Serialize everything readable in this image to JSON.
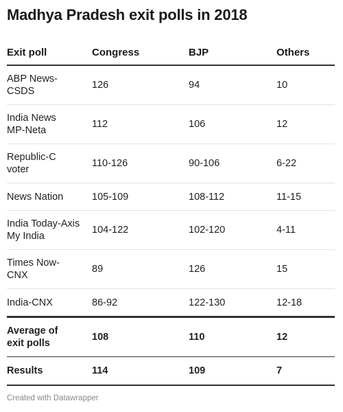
{
  "title": "Madhya Pradesh exit polls in 2018",
  "chart_data": {
    "type": "table",
    "title": "Madhya Pradesh exit polls in 2018",
    "columns": [
      "Exit poll",
      "Congress",
      "BJP",
      "Others"
    ],
    "rows": [
      [
        "ABP News-CSDS",
        "126",
        "94",
        "10"
      ],
      [
        "India News MP-Neta",
        "112",
        "106",
        "12"
      ],
      [
        "Republic-C voter",
        "110-126",
        "90-106",
        "6-22"
      ],
      [
        "News Nation",
        "105-109",
        "108-112",
        "11-15"
      ],
      [
        "India Today-Axis My India",
        "104-122",
        "102-120",
        "4-11"
      ],
      [
        "Times Now-CNX",
        "89",
        "126",
        "15"
      ],
      [
        "India-CNX",
        "86-92",
        "122-130",
        "12-18"
      ]
    ],
    "average_row": [
      "Average of exit polls",
      "108",
      "110",
      "12"
    ],
    "results_row": [
      "Results",
      "114",
      "109",
      "7"
    ]
  },
  "footer": "Created with Datawrapper"
}
